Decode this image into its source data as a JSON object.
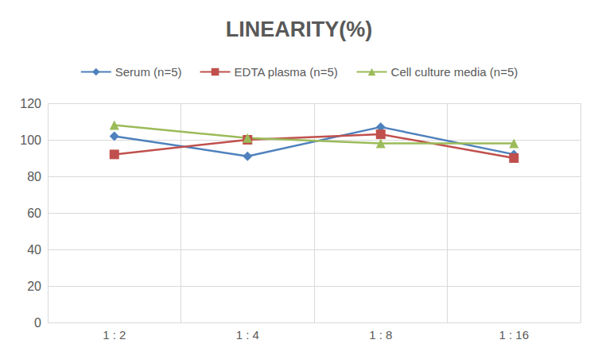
{
  "chart_data": {
    "type": "line",
    "title": "LINEARITY(%)",
    "categories": [
      "1 : 2",
      "1 : 4",
      "1 : 8",
      "1 : 16"
    ],
    "series": [
      {
        "name": "Serum (n=5)",
        "color": "#4f81bd",
        "marker": "diamond",
        "values": [
          102,
          91,
          107,
          92
        ]
      },
      {
        "name": "EDTA plasma (n=5)",
        "color": "#c0504d",
        "marker": "square",
        "values": [
          92,
          100,
          103,
          90
        ]
      },
      {
        "name": "Cell culture media (n=5)",
        "color": "#9bbb59",
        "marker": "triangle",
        "values": [
          108,
          101,
          98,
          98
        ]
      }
    ],
    "ylim": [
      0,
      120
    ],
    "yticks": [
      0,
      20,
      40,
      60,
      80,
      100,
      120
    ],
    "grid": true,
    "legend": "top"
  }
}
